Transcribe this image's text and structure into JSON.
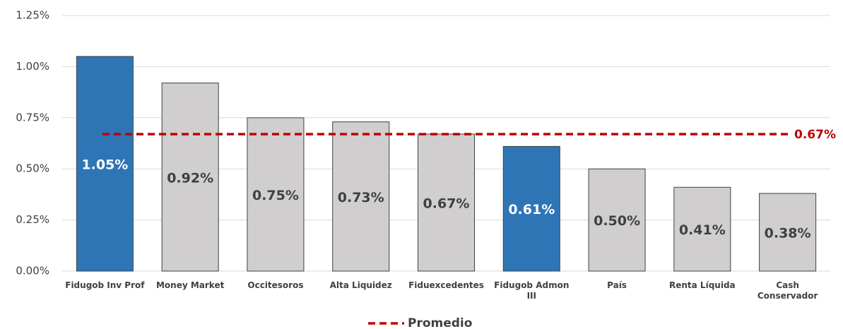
{
  "chart_data": {
    "type": "bar",
    "categories": [
      "Fidugob Inv Prof",
      "Money Market",
      "Occitesoros",
      "Alta Liquidez",
      "Fiduexcedentes",
      "Fidugob Admon III",
      "País",
      "Renta Líquida",
      "Cash Conservador"
    ],
    "values": [
      1.05,
      0.92,
      0.75,
      0.73,
      0.67,
      0.61,
      0.5,
      0.41,
      0.38
    ],
    "value_labels": [
      "1.05%",
      "0.92%",
      "0.75%",
      "0.73%",
      "0.67%",
      "0.61%",
      "0.50%",
      "0.41%",
      "0.38%"
    ],
    "colors": [
      "#2e75b6",
      "#d0cece",
      "#d0cece",
      "#d0cece",
      "#d0cece",
      "#2e75b6",
      "#d0cece",
      "#d0cece",
      "#d0cece"
    ],
    "ylim": [
      0,
      1.25
    ],
    "yticks": [
      {
        "value": 0,
        "label": "0.00%"
      },
      {
        "value": 0.25,
        "label": "0.25%"
      },
      {
        "value": 0.5,
        "label": "0.50%"
      },
      {
        "value": 0.75,
        "label": "0.75%"
      },
      {
        "value": 1.0,
        "label": "1.00%"
      },
      {
        "value": 1.25,
        "label": "1.25%"
      }
    ],
    "grid": true,
    "reference_line": {
      "name": "Promedio",
      "value": 0.67,
      "value_label": "0.67%",
      "color": "#c00000"
    },
    "legend": "bottom"
  }
}
